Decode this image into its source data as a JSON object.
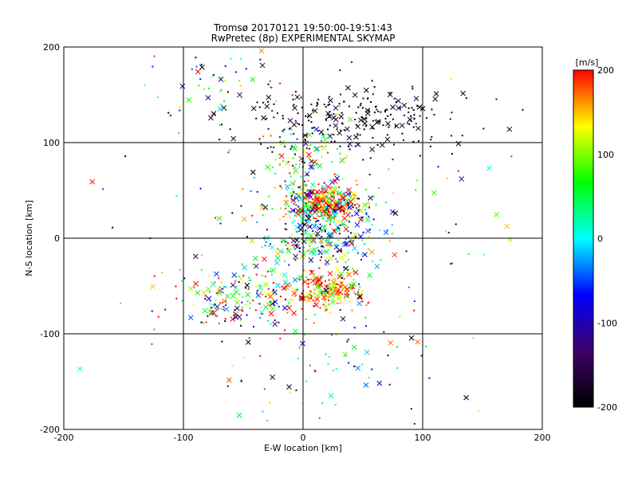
{
  "chart_data": {
    "type": "scatter",
    "title": "Tromsø 20170121 19:50:00-19:51:43",
    "subtitle": "RwPretec (8p) EXPERIMENTAL SKYMAP",
    "xlabel": "E-W location [km]",
    "ylabel": "N-S location [km]",
    "xlim": [
      -200,
      200
    ],
    "ylim": [
      -200,
      200
    ],
    "xticks": [
      "-200",
      "-100",
      "0",
      "100",
      "200"
    ],
    "yticks": [
      "-200",
      "-100",
      "0",
      "100",
      "200"
    ],
    "grid": true,
    "colorbar": {
      "label": "[m/s]",
      "range": [
        -200,
        200
      ],
      "ticks": [
        "-200",
        "-100",
        "0",
        "100",
        "200"
      ],
      "colormap": [
        "#000000",
        "#3d0066",
        "#0000ff",
        "#00ffff",
        "#00ff00",
        "#ffff00",
        "#ff0000"
      ],
      "placement": "right"
    },
    "markers": [
      "x",
      "dot"
    ],
    "clusters": [
      {
        "x": 20,
        "y": 38,
        "sx": 14,
        "sy": 8,
        "n": 220,
        "v": 170,
        "vs": 60
      },
      {
        "x": 20,
        "y": 30,
        "sx": 22,
        "sy": 15,
        "n": 200,
        "v": 0,
        "vs": 140
      },
      {
        "x": 18,
        "y": -55,
        "sx": 16,
        "sy": 10,
        "n": 200,
        "v": 160,
        "vs": 70
      },
      {
        "x": 15,
        "y": -5,
        "sx": 25,
        "sy": 12,
        "n": 180,
        "v": 20,
        "vs": 120
      },
      {
        "x": 45,
        "y": 125,
        "sx": 50,
        "sy": 18,
        "n": 230,
        "v": -190,
        "vs": 30
      },
      {
        "x": -50,
        "y": -65,
        "sx": 30,
        "sy": 15,
        "n": 180,
        "v": 60,
        "vs": 150
      },
      {
        "x": 0,
        "y": 70,
        "sx": 20,
        "sy": 30,
        "n": 140,
        "v": 60,
        "vs": 120
      },
      {
        "x": -70,
        "y": 160,
        "sx": 28,
        "sy": 25,
        "n": 55,
        "v": -30,
        "vs": 150
      },
      {
        "x": 10,
        "y": -130,
        "sx": 45,
        "sy": 30,
        "n": 60,
        "v": 0,
        "vs": 160
      },
      {
        "x": 0,
        "y": 0,
        "sx": 90,
        "sy": 90,
        "n": 160,
        "v": 0,
        "vs": 150
      }
    ]
  }
}
